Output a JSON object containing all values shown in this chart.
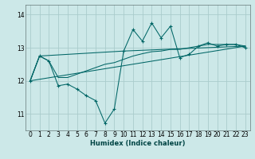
{
  "xlabel": "Humidex (Indice chaleur)",
  "xlim": [
    -0.5,
    23.5
  ],
  "ylim": [
    10.5,
    14.3
  ],
  "yticks": [
    11,
    12,
    13,
    14
  ],
  "xticks": [
    0,
    1,
    2,
    3,
    4,
    5,
    6,
    7,
    8,
    9,
    10,
    11,
    12,
    13,
    14,
    15,
    16,
    17,
    18,
    19,
    20,
    21,
    22,
    23
  ],
  "bg_color": "#cce8e8",
  "grid_color": "#aacccc",
  "line_color": "#006666",
  "line1_x": [
    0,
    1,
    2,
    3,
    4,
    5,
    6,
    7,
    8,
    9,
    10,
    11,
    12,
    13,
    14,
    15,
    16,
    17,
    18,
    19,
    20,
    21,
    22,
    23
  ],
  "line1_y": [
    12.0,
    12.75,
    12.6,
    11.85,
    11.9,
    11.75,
    11.55,
    11.4,
    10.72,
    11.15,
    12.9,
    13.55,
    13.2,
    13.75,
    13.3,
    13.65,
    12.7,
    12.8,
    13.05,
    13.15,
    13.05,
    13.1,
    13.1,
    13.0
  ],
  "line2_x": [
    0,
    1,
    2,
    3,
    4,
    5,
    6,
    7,
    8,
    9,
    10,
    11,
    12,
    13,
    14,
    15,
    16,
    17,
    18,
    19,
    20,
    21,
    22,
    23
  ],
  "line2_y": [
    12.0,
    12.75,
    12.6,
    12.1,
    12.1,
    12.2,
    12.3,
    12.4,
    12.5,
    12.55,
    12.65,
    12.75,
    12.82,
    12.88,
    12.9,
    12.95,
    12.95,
    13.0,
    13.05,
    13.1,
    13.1,
    13.1,
    13.1,
    13.05
  ],
  "line3_x": [
    0,
    23
  ],
  "line3_y": [
    12.0,
    13.05
  ],
  "line4_x": [
    0,
    1,
    10,
    23
  ],
  "line4_y": [
    12.0,
    12.75,
    12.9,
    13.05
  ]
}
